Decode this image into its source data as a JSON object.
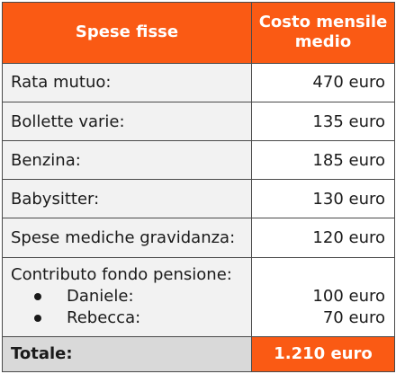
{
  "header": {
    "col1": "Spese fisse",
    "col2": "Costo mensile medio"
  },
  "rows": [
    {
      "label": "Rata mutuo:",
      "value": "470 euro"
    },
    {
      "label": "Bollette varie:",
      "value": "135 euro"
    },
    {
      "label": "Benzina:",
      "value": "185 euro"
    },
    {
      "label": "Babysitter:",
      "value": "130 euro"
    },
    {
      "label": "Spese mediche gravidanza:",
      "value": "120 euro"
    }
  ],
  "pension": {
    "label": "Contributo fondo pensione:",
    "items": [
      {
        "name": "Daniele:",
        "value": "100 euro"
      },
      {
        "name": "Rebecca:",
        "value": "70 euro"
      }
    ]
  },
  "total": {
    "label": "Totale:",
    "value": "1.210 euro"
  },
  "colors": {
    "accent": "#fa5a14",
    "label_bg": "#f2f2f2",
    "total_label_bg": "#d9d9d9",
    "border": "#4a4a4a"
  }
}
